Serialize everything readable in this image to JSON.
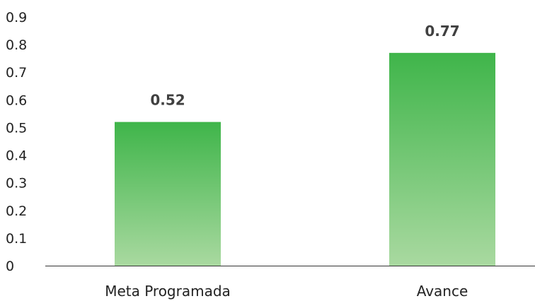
{
  "chart_data": {
    "type": "bar",
    "title": "",
    "xlabel": "",
    "ylabel": "",
    "categories": [
      "Meta Programada",
      "Avance"
    ],
    "values": [
      0.52,
      0.77
    ],
    "value_labels": [
      "0.52",
      "0.77"
    ],
    "yticks": [
      "0",
      "0.1",
      "0.2",
      "0.3",
      "0.4",
      "0.5",
      "0.6",
      "0.7",
      "0.8",
      "0.9"
    ],
    "ylim": [
      0,
      0.9
    ],
    "grid": false,
    "legend": "none",
    "colors": {
      "bar_top": "#3fb54a",
      "bar_bottom": "#a9d9a0",
      "axis": "#333333"
    }
  }
}
